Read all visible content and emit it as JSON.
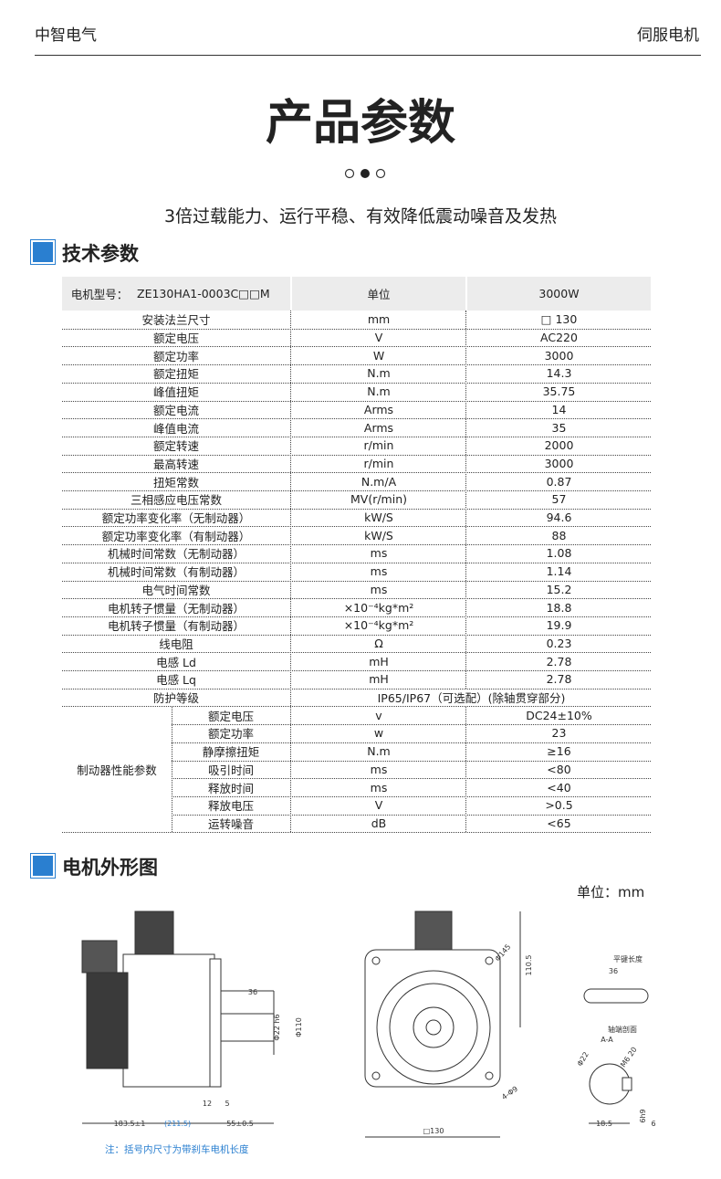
{
  "header": {
    "brand": "中智电气",
    "category": "伺服电机"
  },
  "title": "产品参数",
  "subtitle": "3倍过载能力、运行平稳、有效降低震动噪音及发热",
  "spec_section": {
    "title": "技术参数",
    "table": {
      "header": [
        "电机型号：",
        "ZE130HA1-0003C□□M",
        "单位",
        "3000W"
      ],
      "rows": [
        [
          "安装法兰尺寸",
          "mm",
          "□ 130"
        ],
        [
          "额定电压",
          "V",
          "AC220"
        ],
        [
          "额定功率",
          "W",
          "3000"
        ],
        [
          "额定扭矩",
          "N.m",
          "14.3"
        ],
        [
          "峰值扭矩",
          "N.m",
          "35.75"
        ],
        [
          "额定电流",
          "Arms",
          "14"
        ],
        [
          "峰值电流",
          "Arms",
          "35"
        ],
        [
          "额定转速",
          "r/min",
          "2000"
        ],
        [
          "最高转速",
          "r/min",
          "3000"
        ],
        [
          "扭矩常数",
          "N.m/A",
          "0.87"
        ],
        [
          "三相感应电压常数",
          "MV(r/min)",
          "57"
        ],
        [
          "额定功率变化率（无制动器）",
          "kW/S",
          "94.6"
        ],
        [
          "额定功率变化率（有制动器）",
          "kW/S",
          "88"
        ],
        [
          "机械时间常数（无制动器）",
          "ms",
          "1.08"
        ],
        [
          "机械时间常数（有制动器）",
          "ms",
          "1.14"
        ],
        [
          "电气时间常数",
          "ms",
          "15.2"
        ],
        [
          "电机转子惯量（无制动器）",
          "×10⁻⁴kg*m²",
          "18.8"
        ],
        [
          "电机转子惯量（有制动器）",
          "×10⁻⁴kg*m²",
          "19.9"
        ],
        [
          "线电阻",
          "Ω",
          "0.23"
        ],
        [
          "电感 Ld",
          "mH",
          "2.78"
        ],
        [
          "电感 Lq",
          "mH",
          "2.78"
        ]
      ],
      "protection": {
        "label": "防护等级",
        "value": "IP65/IP67（可选配）(除轴贯穿部分)"
      },
      "brake": {
        "label": "制动器性能参数",
        "rows": [
          [
            "额定电压",
            "v",
            "DC24±10%"
          ],
          [
            "额定功率",
            "w",
            "23"
          ],
          [
            "静摩擦扭矩",
            "N.m",
            "≥16"
          ],
          [
            "吸引时间",
            "ms",
            "<80"
          ],
          [
            "释放时间",
            "ms",
            "<40"
          ],
          [
            "释放电压",
            "V",
            ">0.5"
          ],
          [
            "运转噪音",
            "dB",
            "<65"
          ]
        ]
      }
    }
  },
  "drawing_section": {
    "title": "电机外形图",
    "unit_label": "单位：mm",
    "labels": [
      "36",
      "Φ22 h6",
      "Φ110",
      "12",
      "5",
      "183.5±1",
      "(211.5)",
      "55±0.5",
      "Φ145",
      "110.5",
      "□130",
      "4-Φ9",
      "平键长度",
      "36",
      "轴端剖面",
      "A-A",
      "Φ22",
      "M6 20",
      "18.5",
      "6h9",
      "6"
    ],
    "note": "注：括号内尺寸为带刹车电机长度"
  }
}
